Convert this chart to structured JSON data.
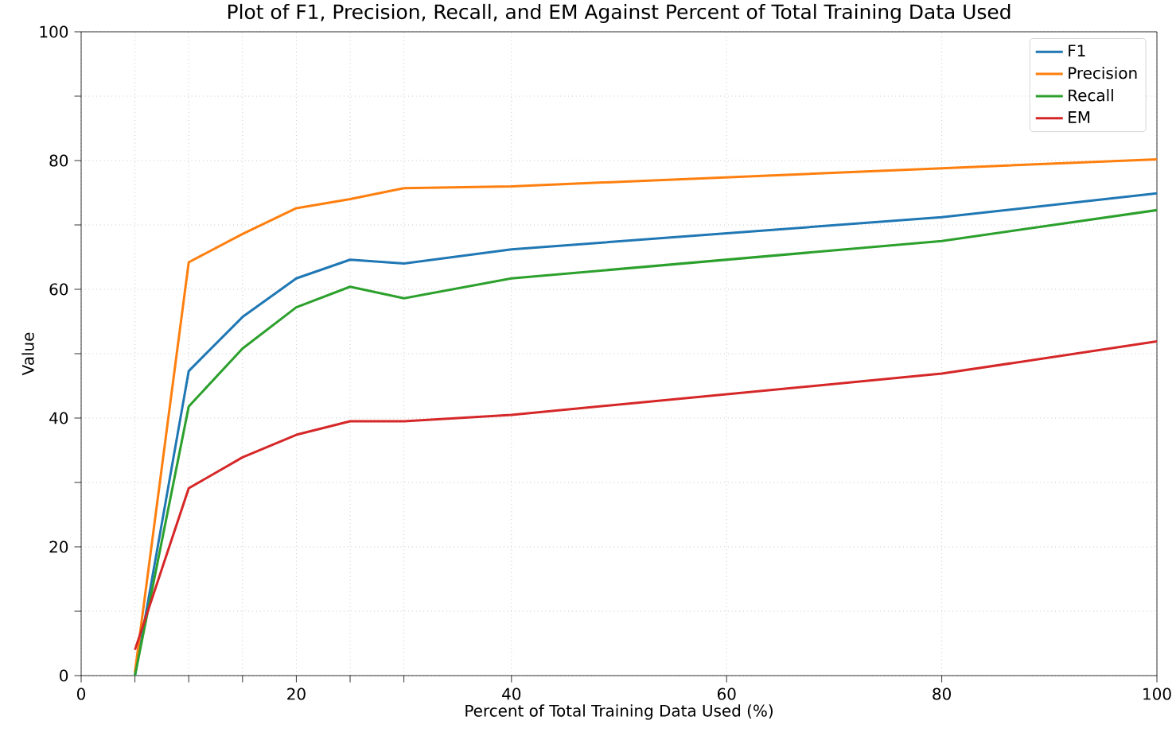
{
  "chart_data": {
    "type": "line",
    "title": "Plot of F1, Precision, Recall, and EM Against Percent of Total Training Data Used",
    "xlabel": "Percent of Total Training Data Used (%)",
    "ylabel": "Value",
    "x": [
      5,
      10,
      15,
      20,
      25,
      30,
      40,
      80,
      100
    ],
    "series": [
      {
        "name": "F1",
        "color": "#1f77b4",
        "values": [
          0,
          47.3,
          55.7,
          61.7,
          64.6,
          64.0,
          66.2,
          71.2,
          74.9
        ]
      },
      {
        "name": "Precision",
        "color": "#ff7f0e",
        "values": [
          0.5,
          64.2,
          68.6,
          72.6,
          74.0,
          75.7,
          76.0,
          78.8,
          80.2
        ]
      },
      {
        "name": "Recall",
        "color": "#2ca02c",
        "values": [
          0,
          41.8,
          50.8,
          57.2,
          60.4,
          58.6,
          61.7,
          67.5,
          72.3
        ]
      },
      {
        "name": "EM",
        "color": "#d62728",
        "values": [
          4.0,
          29.1,
          33.9,
          37.4,
          39.5,
          39.5,
          40.5,
          46.9,
          51.9
        ]
      }
    ],
    "xlim": [
      0,
      100
    ],
    "ylim": [
      0,
      100
    ],
    "xticks": [
      0,
      {
        "value": 5,
        "label": null
      },
      {
        "value": 10,
        "label": null
      },
      {
        "value": 15,
        "label": null
      },
      20,
      {
        "value": 25,
        "label": null
      },
      {
        "value": 30,
        "label": null
      },
      40,
      60,
      80,
      100
    ],
    "yticks": [
      0,
      {
        "value": 10,
        "label": null
      },
      20,
      {
        "value": 30,
        "label": null
      },
      40,
      {
        "value": 50,
        "label": null
      },
      60,
      {
        "value": 70,
        "label": null
      },
      80,
      {
        "value": 90,
        "label": null
      },
      100
    ],
    "grid": true,
    "legend": "top right",
    "marker": "none",
    "line_style": "solid"
  }
}
